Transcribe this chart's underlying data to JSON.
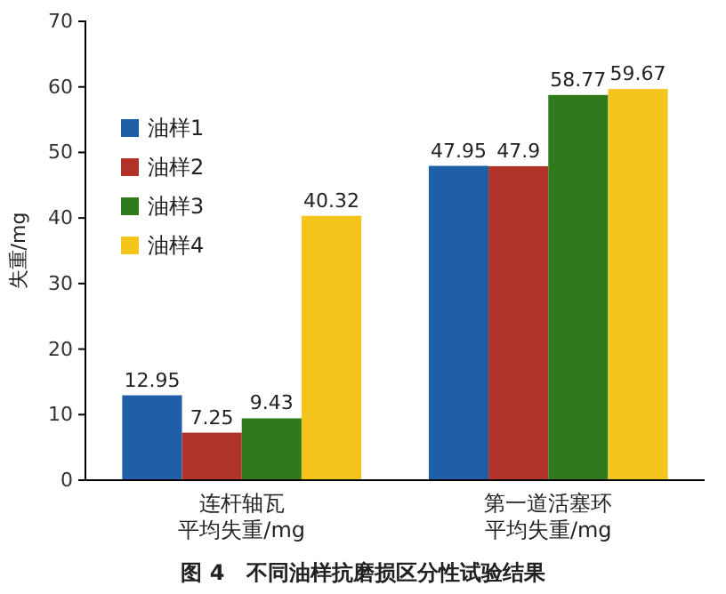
{
  "chart_data": {
    "type": "bar",
    "title": "图 4　不同油样抗磨损区分性试验结果",
    "ylabel": "失重/mg",
    "categories": [
      "连杆轴瓦平均失重/mg",
      "第一道活塞环平均失重/mg"
    ],
    "series": [
      {
        "name": "油样1",
        "color": "#1f5fa8",
        "values": [
          12.95,
          47.95
        ]
      },
      {
        "name": "油样2",
        "color": "#b03228",
        "values": [
          7.25,
          47.9
        ]
      },
      {
        "name": "油样3",
        "color": "#2e7a1c",
        "values": [
          9.43,
          58.77
        ]
      },
      {
        "name": "油样4",
        "color": "#f5c41a",
        "values": [
          40.32,
          59.67
        ]
      }
    ],
    "ylim": [
      0,
      70
    ],
    "yticks": [
      0,
      10,
      20,
      30,
      40,
      50,
      60,
      70
    ],
    "data_labels": true,
    "legend": "top left",
    "grid": false
  }
}
